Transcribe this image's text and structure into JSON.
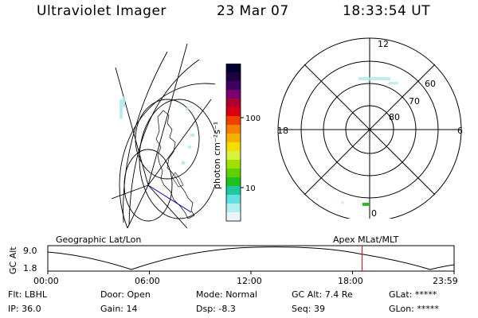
{
  "header": {
    "instrument": "Ultraviolet Imager",
    "date": "23 Mar 07",
    "time": "18:33:54 UT"
  },
  "colorbar": {
    "unit_label": "photon cm⁻²s⁻¹",
    "tick_labels": [
      "100",
      "10"
    ],
    "colors": [
      "#000030",
      "#200040",
      "#400060",
      "#7a0070",
      "#b00030",
      "#d80010",
      "#f04000",
      "#f88000",
      "#f8b000",
      "#f0e000",
      "#d8f040",
      "#a0e000",
      "#60d000",
      "#20c020",
      "#20c8a0",
      "#60e0e0",
      "#b0f0f0",
      "#e8f8f8"
    ]
  },
  "geographic_panel": {
    "label": "Geographic Lat/Lon"
  },
  "apex_panel": {
    "label": "Apex MLat/MLT",
    "mlt_labels": {
      "top": "12",
      "left": "18",
      "right": "6",
      "bottom": "0"
    },
    "lat_labels": [
      "60",
      "70",
      "80"
    ]
  },
  "orbit_plot": {
    "ylabel": "GC Alt",
    "y_ticks": [
      "9.0",
      "1.8"
    ],
    "x_ticks": [
      "00:00",
      "06:00",
      "12:00",
      "18:00",
      "23:59"
    ],
    "current_time_marker_hour": 18.56
  },
  "status": {
    "filter_label": "Flt:",
    "filter_value": "LBHL",
    "door_label": "Door:",
    "door_value": "Open",
    "mode_label": "Mode:",
    "mode_value": "Normal",
    "gcalt_label": "GC Alt:",
    "gcalt_value": "7.4 Re",
    "glat_label": "GLat:",
    "glat_value": "*****",
    "ip_label": "IP:",
    "ip_value": "36.0",
    "gain_label": "Gain:",
    "gain_value": "14",
    "dsp_label": "Dsp:",
    "dsp_value": "-8.3",
    "seq_label": "Seq:",
    "seq_value": "39",
    "glon_label": "GLon:",
    "glon_value": "*****"
  }
}
